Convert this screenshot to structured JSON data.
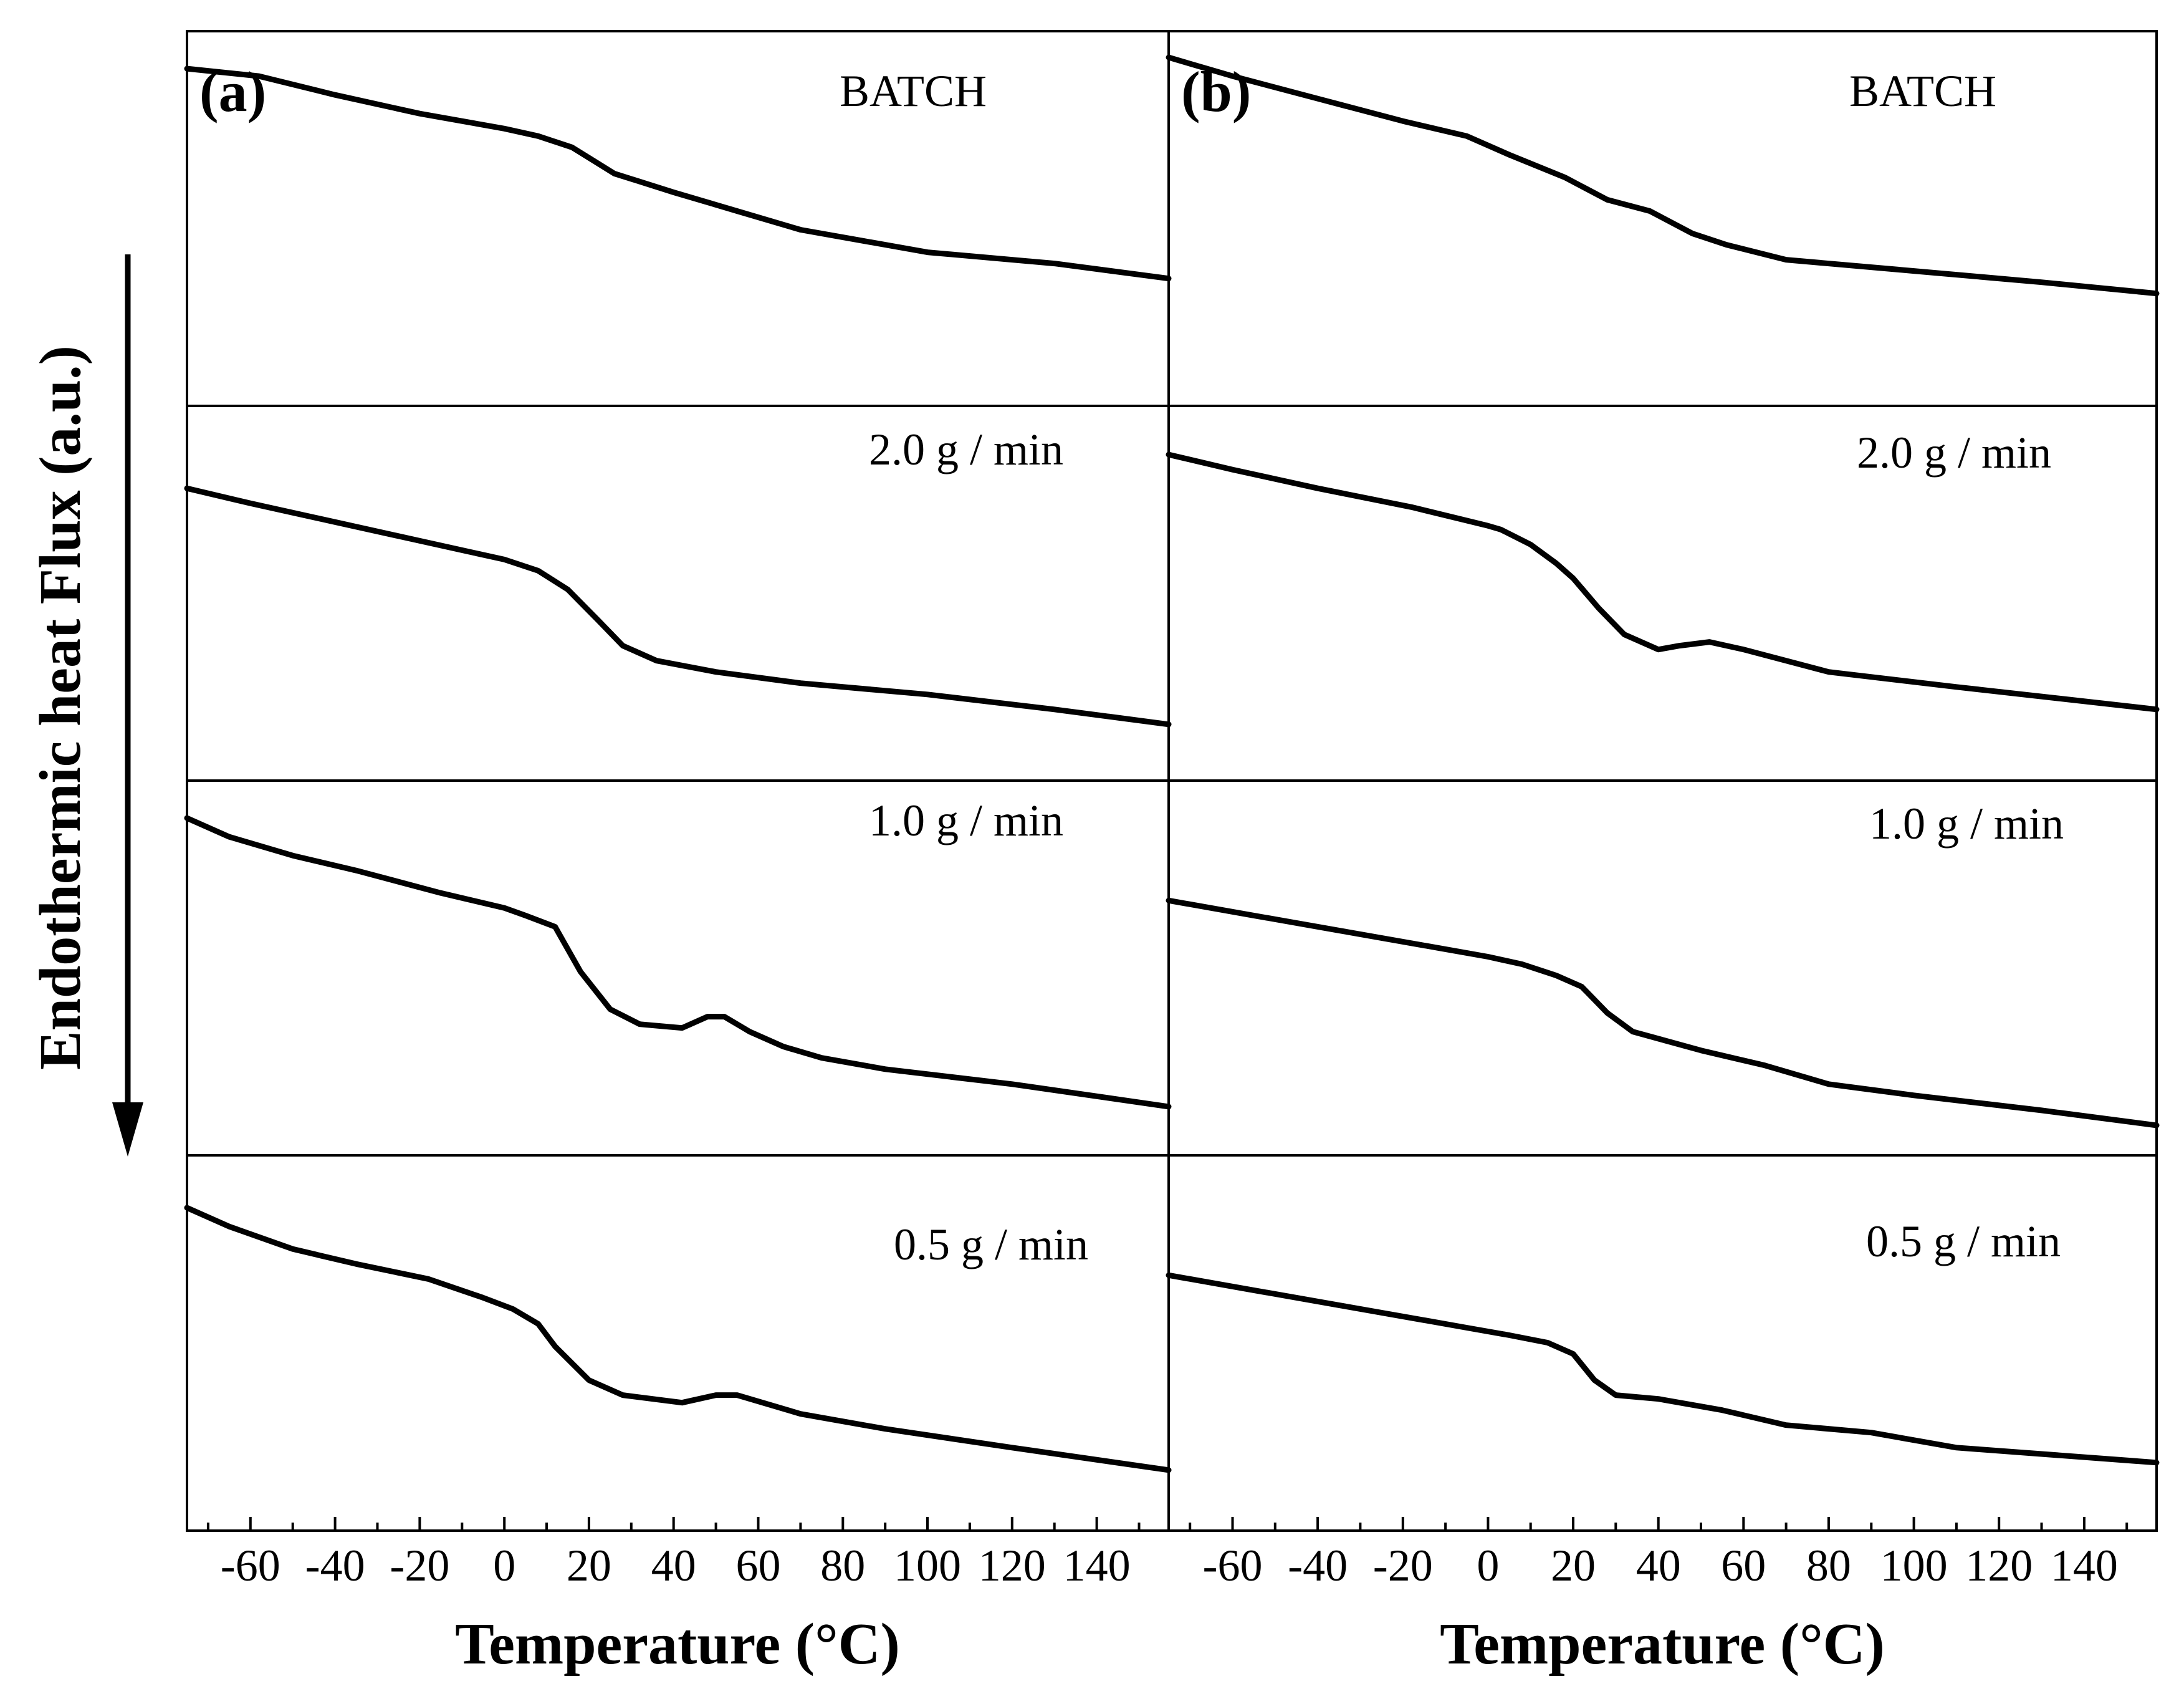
{
  "chart_data": {
    "type": "line",
    "xlabel": "Temperature (°C)",
    "ylabel": "Endothermic heat Flux (a.u.)",
    "y_direction": "down",
    "xlim": [
      -75,
      157
    ],
    "x_ticks": [
      -60,
      -40,
      -20,
      0,
      20,
      40,
      60,
      80,
      100,
      120,
      140
    ],
    "y_ticks": "none",
    "panels": [
      {
        "letter": "(a)",
        "traces": [
          {
            "name": "BATCH",
            "points": [
              [
                -75,
                0.1
              ],
              [
                -58,
                0.12
              ],
              [
                -40,
                0.17
              ],
              [
                -20,
                0.22
              ],
              [
                0,
                0.26
              ],
              [
                8,
                0.28
              ],
              [
                16,
                0.31
              ],
              [
                26,
                0.38
              ],
              [
                40,
                0.43
              ],
              [
                55,
                0.48
              ],
              [
                70,
                0.53
              ],
              [
                100,
                0.59
              ],
              [
                130,
                0.62
              ],
              [
                157,
                0.66
              ]
            ]
          },
          {
            "name": "2.0 g / min",
            "points": [
              [
                -75,
                0.22
              ],
              [
                -60,
                0.26
              ],
              [
                -40,
                0.31
              ],
              [
                -20,
                0.36
              ],
              [
                0,
                0.41
              ],
              [
                8,
                0.44
              ],
              [
                15,
                0.49
              ],
              [
                22,
                0.57
              ],
              [
                28,
                0.64
              ],
              [
                36,
                0.68
              ],
              [
                50,
                0.71
              ],
              [
                70,
                0.74
              ],
              [
                100,
                0.77
              ],
              [
                130,
                0.81
              ],
              [
                157,
                0.85
              ]
            ]
          },
          {
            "name": "1.0 g / min",
            "points": [
              [
                -75,
                0.1
              ],
              [
                -65,
                0.15
              ],
              [
                -50,
                0.2
              ],
              [
                -35,
                0.24
              ],
              [
                -15,
                0.3
              ],
              [
                0,
                0.34
              ],
              [
                5,
                0.36
              ],
              [
                12,
                0.39
              ],
              [
                18,
                0.51
              ],
              [
                25,
                0.61
              ],
              [
                32,
                0.65
              ],
              [
                42,
                0.66
              ],
              [
                48,
                0.63
              ],
              [
                52,
                0.63
              ],
              [
                58,
                0.67
              ],
              [
                66,
                0.71
              ],
              [
                75,
                0.74
              ],
              [
                90,
                0.77
              ],
              [
                120,
                0.81
              ],
              [
                157,
                0.87
              ]
            ]
          },
          {
            "name": "0.5 g / min",
            "points": [
              [
                -75,
                0.14
              ],
              [
                -65,
                0.19
              ],
              [
                -50,
                0.25
              ],
              [
                -35,
                0.29
              ],
              [
                -18,
                0.33
              ],
              [
                -5,
                0.38
              ],
              [
                2,
                0.41
              ],
              [
                8,
                0.45
              ],
              [
                12,
                0.51
              ],
              [
                20,
                0.6
              ],
              [
                28,
                0.64
              ],
              [
                42,
                0.66
              ],
              [
                50,
                0.64
              ],
              [
                55,
                0.64
              ],
              [
                70,
                0.69
              ],
              [
                90,
                0.73
              ],
              [
                120,
                0.78
              ],
              [
                157,
                0.84
              ]
            ]
          }
        ],
        "labels": [
          "BATCH",
          "2.0 g / min",
          "1.0 g / min",
          "0.5 g / min"
        ]
      },
      {
        "letter": "(b)",
        "traces": [
          {
            "name": "BATCH",
            "points": [
              [
                -75,
                0.07
              ],
              [
                -60,
                0.12
              ],
              [
                -40,
                0.18
              ],
              [
                -20,
                0.24
              ],
              [
                -5,
                0.28
              ],
              [
                5,
                0.33
              ],
              [
                18,
                0.39
              ],
              [
                28,
                0.45
              ],
              [
                38,
                0.48
              ],
              [
                48,
                0.54
              ],
              [
                56,
                0.57
              ],
              [
                70,
                0.61
              ],
              [
                100,
                0.64
              ],
              [
                130,
                0.67
              ],
              [
                157,
                0.7
              ]
            ]
          },
          {
            "name": "2.0 g / min",
            "points": [
              [
                -75,
                0.13
              ],
              [
                -60,
                0.17
              ],
              [
                -40,
                0.22
              ],
              [
                -18,
                0.27
              ],
              [
                0,
                0.32
              ],
              [
                3,
                0.33
              ],
              [
                10,
                0.37
              ],
              [
                16,
                0.42
              ],
              [
                20,
                0.46
              ],
              [
                26,
                0.54
              ],
              [
                32,
                0.61
              ],
              [
                40,
                0.65
              ],
              [
                45,
                0.64
              ],
              [
                52,
                0.63
              ],
              [
                60,
                0.65
              ],
              [
                80,
                0.71
              ],
              [
                110,
                0.75
              ],
              [
                157,
                0.81
              ]
            ]
          },
          {
            "name": "1.0 g / min",
            "points": [
              [
                -75,
                0.32
              ],
              [
                -55,
                0.36
              ],
              [
                -35,
                0.4
              ],
              [
                -15,
                0.44
              ],
              [
                0,
                0.47
              ],
              [
                8,
                0.49
              ],
              [
                16,
                0.52
              ],
              [
                22,
                0.55
              ],
              [
                28,
                0.62
              ],
              [
                34,
                0.67
              ],
              [
                50,
                0.72
              ],
              [
                65,
                0.76
              ],
              [
                80,
                0.81
              ],
              [
                100,
                0.84
              ],
              [
                130,
                0.88
              ],
              [
                157,
                0.92
              ]
            ]
          },
          {
            "name": "0.5 g / min",
            "points": [
              [
                -75,
                0.32
              ],
              [
                -55,
                0.36
              ],
              [
                -35,
                0.4
              ],
              [
                -15,
                0.44
              ],
              [
                -5,
                0.46
              ],
              [
                5,
                0.48
              ],
              [
                14,
                0.5
              ],
              [
                20,
                0.53
              ],
              [
                25,
                0.6
              ],
              [
                30,
                0.64
              ],
              [
                40,
                0.65
              ],
              [
                55,
                0.68
              ],
              [
                70,
                0.72
              ],
              [
                90,
                0.74
              ],
              [
                110,
                0.78
              ],
              [
                157,
                0.82
              ]
            ]
          }
        ],
        "labels": [
          "BATCH",
          "2.0 g / min",
          "1.0 g / min",
          "0.5 g / min"
        ]
      }
    ]
  }
}
